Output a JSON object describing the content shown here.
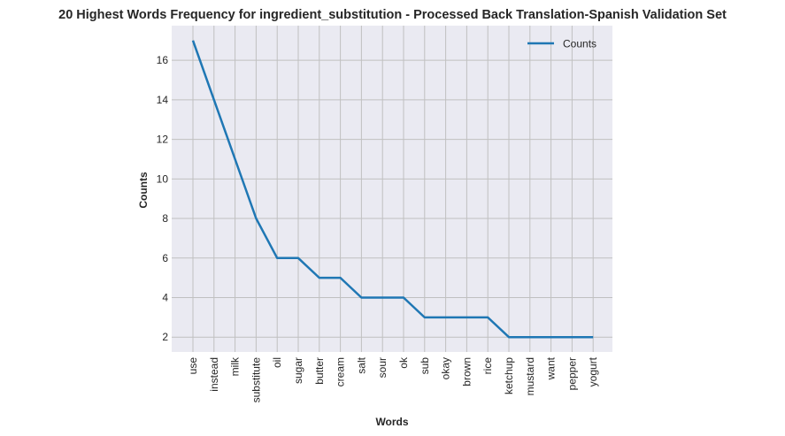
{
  "chart_data": {
    "type": "line",
    "title": "20 Highest Words Frequency for ingredient_substitution - Processed Back Translation-Spanish Validation Set",
    "xlabel": "Words",
    "ylabel": "Counts",
    "categories": [
      "use",
      "instead",
      "milk",
      "substitute",
      "oil",
      "sugar",
      "butter",
      "cream",
      "salt",
      "sour",
      "ok",
      "sub",
      "okay",
      "brown",
      "rice",
      "ketchup",
      "mustard",
      "want",
      "pepper",
      "yogurt"
    ],
    "series": [
      {
        "name": "Counts",
        "values": [
          17,
          14,
          11,
          8,
          6,
          6,
          5,
          5,
          4,
          4,
          4,
          3,
          3,
          3,
          3,
          2,
          2,
          2,
          2,
          2
        ],
        "color": "#1f77b4"
      }
    ],
    "ylim": [
      1.25,
      17.75
    ],
    "yticks": [
      2,
      4,
      6,
      8,
      10,
      12,
      14,
      16
    ],
    "grid": true,
    "legend_position": "top-right",
    "background_color": "#eaeaf2",
    "grid_color": "#c0c0c0"
  }
}
